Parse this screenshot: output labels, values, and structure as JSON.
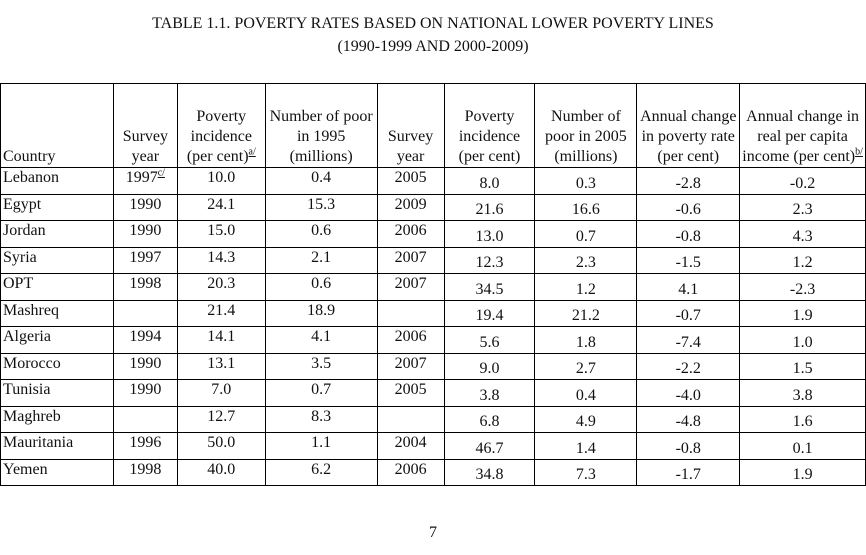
{
  "title": {
    "line1": "TABLE 1.1. POVERTY RATES BASED ON NATIONAL LOWER POVERTY LINES",
    "line2": "(1990-1999 AND 2000-2009)"
  },
  "headers": {
    "country": "Country",
    "survey_year_1": "Survey year",
    "poverty_incidence_1": "Poverty incidence (per cent)",
    "poverty_incidence_1_note": "a/",
    "number_poor_1995": "Number of poor in 1995 (millions)",
    "survey_year_2": "Survey year",
    "poverty_incidence_2": "Poverty incidence (per cent)",
    "number_poor_2005": "Number of poor in 2005 (millions)",
    "annual_change_poverty": "Annual change in poverty rate (per cent)",
    "annual_change_income": "Annual change in real per capita income (per cent)",
    "annual_change_income_note": "b/"
  },
  "rows": [
    {
      "country": "Lebanon",
      "year1": "1997",
      "year1_note": "c/",
      "inc1": "10.0",
      "poor1995": "0.4",
      "year2": "2005",
      "inc2": "8.0",
      "poor2005": "0.3",
      "chg_pov": "-2.8",
      "chg_inc": "-0.2"
    },
    {
      "country": "Egypt",
      "year1": "1990",
      "year1_note": "",
      "inc1": "24.1",
      "poor1995": "15.3",
      "year2": "2009",
      "inc2": "21.6",
      "poor2005": "16.6",
      "chg_pov": "-0.6",
      "chg_inc": "2.3"
    },
    {
      "country": "Jordan",
      "year1": "1990",
      "year1_note": "",
      "inc1": "15.0",
      "poor1995": "0.6",
      "year2": "2006",
      "inc2": "13.0",
      "poor2005": "0.7",
      "chg_pov": "-0.8",
      "chg_inc": "4.3"
    },
    {
      "country": "Syria",
      "year1": "1997",
      "year1_note": "",
      "inc1": "14.3",
      "poor1995": "2.1",
      "year2": "2007",
      "inc2": "12.3",
      "poor2005": "2.3",
      "chg_pov": "-1.5",
      "chg_inc": "1.2"
    },
    {
      "country": "OPT",
      "year1": "1998",
      "year1_note": "",
      "inc1": "20.3",
      "poor1995": "0.6",
      "year2": "2007",
      "inc2": "34.5",
      "poor2005": "1.2",
      "chg_pov": "4.1",
      "chg_inc": "-2.3"
    },
    {
      "country": "Mashreq",
      "year1": "",
      "year1_note": "",
      "inc1": "21.4",
      "poor1995": "18.9",
      "year2": "",
      "inc2": "19.4",
      "poor2005": "21.2",
      "chg_pov": "-0.7",
      "chg_inc": "1.9"
    },
    {
      "country": "Algeria",
      "year1": "1994",
      "year1_note": "",
      "inc1": "14.1",
      "poor1995": "4.1",
      "year2": "2006",
      "inc2": "5.6",
      "poor2005": "1.8",
      "chg_pov": "-7.4",
      "chg_inc": "1.0"
    },
    {
      "country": "Morocco",
      "year1": "1990",
      "year1_note": "",
      "inc1": "13.1",
      "poor1995": "3.5",
      "year2": "2007",
      "inc2": "9.0",
      "poor2005": "2.7",
      "chg_pov": "-2.2",
      "chg_inc": "1.5"
    },
    {
      "country": "Tunisia",
      "year1": "1990",
      "year1_note": "",
      "inc1": "7.0",
      "poor1995": "0.7",
      "year2": "2005",
      "inc2": "3.8",
      "poor2005": "0.4",
      "chg_pov": "-4.0",
      "chg_inc": "3.8"
    },
    {
      "country": "Maghreb",
      "year1": "",
      "year1_note": "",
      "inc1": "12.7",
      "poor1995": "8.3",
      "year2": "",
      "inc2": "6.8",
      "poor2005": "4.9",
      "chg_pov": "-4.8",
      "chg_inc": "1.6"
    },
    {
      "country": "Mauritania",
      "year1": "1996",
      "year1_note": "",
      "inc1": "50.0",
      "poor1995": "1.1",
      "year2": "2004",
      "inc2": "46.7",
      "poor2005": "1.4",
      "chg_pov": "-0.8",
      "chg_inc": "0.1"
    },
    {
      "country": "Yemen",
      "year1": "1998",
      "year1_note": "",
      "inc1": "40.0",
      "poor1995": "6.2",
      "year2": "2006",
      "inc2": "34.8",
      "poor2005": "7.3",
      "chg_pov": "-1.7",
      "chg_inc": "1.9"
    }
  ],
  "page_number": "7"
}
